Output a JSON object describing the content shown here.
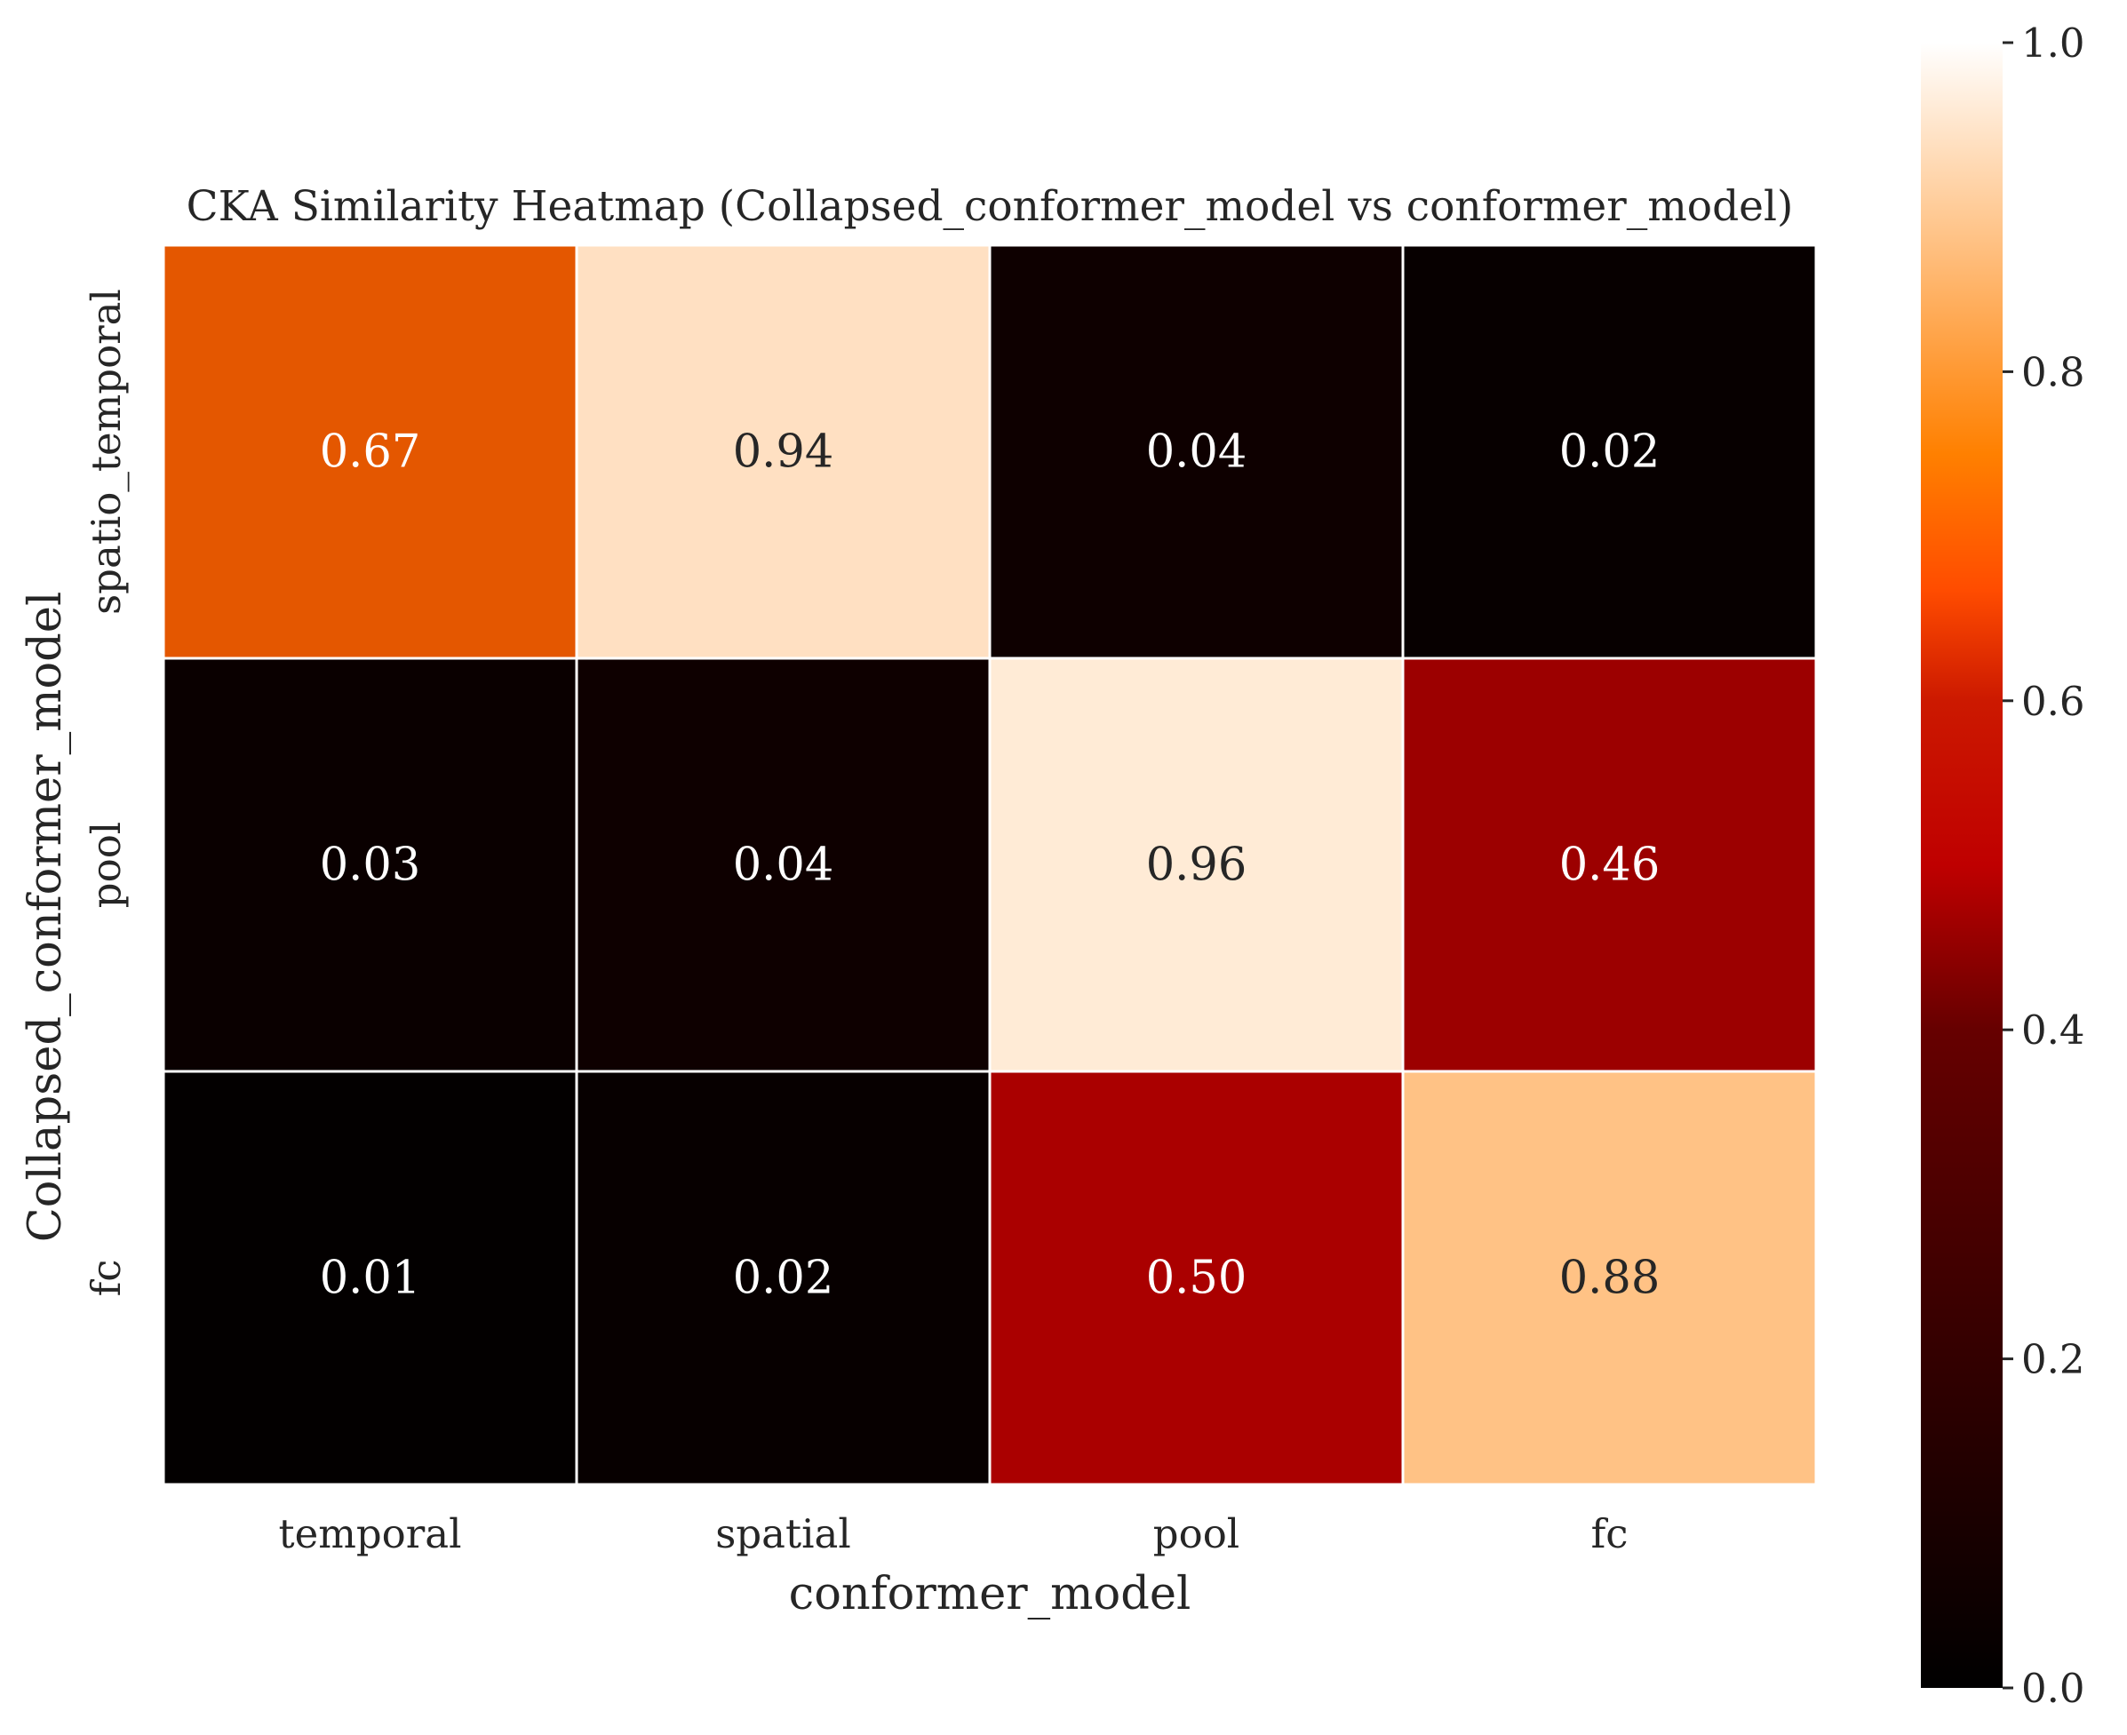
{
  "chart_data": {
    "type": "heatmap",
    "title": "CKA Similarity Heatmap (Collapsed_conformer_model vs conformer_model)",
    "xlabel": "conformer_model",
    "ylabel": "Collapsed_conformer_model",
    "x_categories": [
      "temporal",
      "spatial",
      "pool",
      "fc"
    ],
    "y_categories": [
      "spatio_temporal",
      "pool",
      "fc"
    ],
    "values": [
      [
        0.67,
        0.94,
        0.04,
        0.02
      ],
      [
        0.03,
        0.04,
        0.96,
        0.46
      ],
      [
        0.01,
        0.02,
        0.5,
        0.88
      ]
    ],
    "cell_labels": [
      [
        "0.67",
        "0.94",
        "0.04",
        "0.02"
      ],
      [
        "0.03",
        "0.04",
        "0.96",
        "0.46"
      ],
      [
        "0.01",
        "0.02",
        "0.50",
        "0.88"
      ]
    ],
    "colormap": "gist_heat",
    "colorbar": {
      "range": [
        0.0,
        1.0
      ],
      "ticks": [
        0.0,
        0.2,
        0.4,
        0.6,
        0.8,
        1.0
      ],
      "tick_labels": [
        "0.0",
        "0.2",
        "0.4",
        "0.6",
        "0.8",
        "1.0"
      ]
    },
    "grid": false
  }
}
